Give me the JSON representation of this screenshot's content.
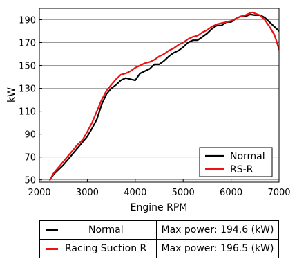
{
  "chart_data": {
    "type": "line",
    "xlabel": "Engine RPM",
    "ylabel": "kW",
    "xlim": [
      2000,
      7000
    ],
    "ylim": [
      48,
      200
    ],
    "xticks": [
      2000,
      3000,
      4000,
      5000,
      6000,
      7000
    ],
    "yticks": [
      50,
      70,
      90,
      110,
      130,
      150,
      170,
      190
    ],
    "grid": "horizontal",
    "legend_position": "bottom-right",
    "series": [
      {
        "name": "Normal",
        "color": "#000000",
        "x": [
          2220,
          2300,
          2400,
          2500,
          2600,
          2700,
          2800,
          2900,
          3000,
          3100,
          3200,
          3300,
          3400,
          3500,
          3600,
          3700,
          3800,
          3900,
          4000,
          4100,
          4200,
          4300,
          4400,
          4500,
          4600,
          4700,
          4800,
          4900,
          5000,
          5100,
          5200,
          5300,
          5400,
          5500,
          5600,
          5700,
          5800,
          5900,
          6000,
          6100,
          6200,
          6300,
          6400,
          6500,
          6600,
          6700,
          6800,
          6900,
          7000
        ],
        "y": [
          50,
          55,
          59,
          63,
          68,
          73,
          78,
          83,
          88,
          95,
          103,
          116,
          125,
          130,
          133,
          137,
          139,
          138,
          137,
          143,
          145,
          147,
          151,
          151,
          154,
          158,
          161,
          163,
          166,
          170,
          172,
          172,
          175,
          178,
          182,
          185,
          185,
          188,
          188,
          191,
          193,
          193,
          194.6,
          194,
          194,
          192,
          188,
          184,
          180
        ]
      },
      {
        "name": "RS-R",
        "color": "#ee1111",
        "x": [
          2220,
          2300,
          2400,
          2500,
          2600,
          2700,
          2800,
          2900,
          3000,
          3100,
          3200,
          3300,
          3400,
          3500,
          3600,
          3700,
          3800,
          3900,
          4000,
          4100,
          4200,
          4300,
          4400,
          4500,
          4600,
          4700,
          4800,
          4900,
          5000,
          5100,
          5200,
          5300,
          5400,
          5500,
          5600,
          5700,
          5800,
          5900,
          6000,
          6100,
          6200,
          6300,
          6400,
          6450,
          6500,
          6600,
          6700,
          6800,
          6900,
          6950,
          7000
        ],
        "y": [
          50,
          56,
          61,
          66,
          71,
          76,
          81,
          85,
          92,
          100,
          110,
          120,
          128,
          133,
          138,
          142,
          143,
          145,
          148,
          150,
          152,
          153,
          155,
          158,
          160,
          163,
          165,
          168,
          170,
          173,
          175,
          176,
          179,
          181,
          184,
          186,
          187,
          188,
          189,
          191,
          193,
          194,
          196,
          196.5,
          195.5,
          194,
          190,
          184,
          177,
          171,
          164
        ]
      }
    ]
  },
  "legend": {
    "items": [
      "Normal",
      "RS-R"
    ]
  },
  "summary_table": {
    "rows": [
      {
        "name": "Normal",
        "power": "Max power: 194.6 (kW)",
        "color": "#000000"
      },
      {
        "name": "Racing Suction R",
        "power": "Max power: 196.5 (kW)",
        "color": "#ee1111"
      }
    ]
  }
}
